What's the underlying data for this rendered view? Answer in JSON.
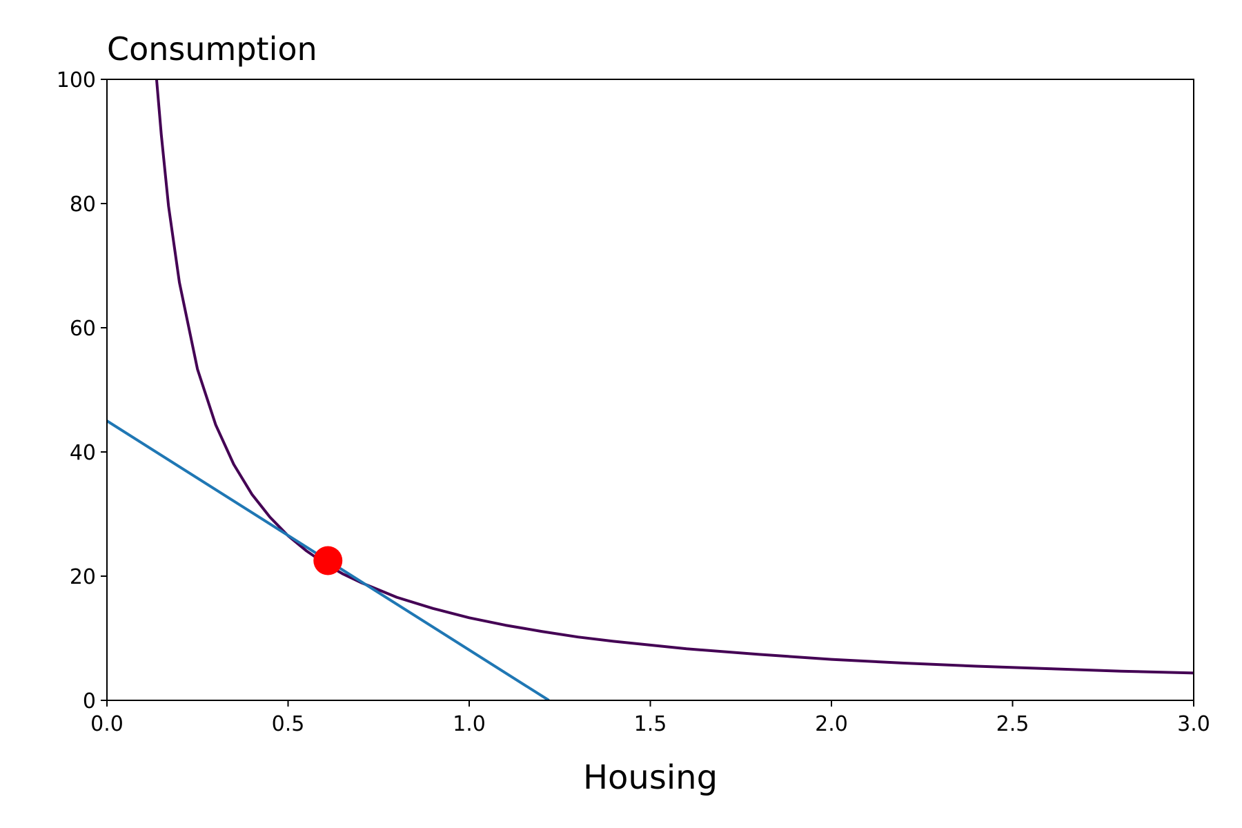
{
  "chart_data": {
    "type": "line",
    "title": "",
    "ylabel": "Consumption",
    "xlabel": "Housing",
    "xlim": [
      0.0,
      3.0
    ],
    "ylim": [
      0,
      100
    ],
    "xticks": [
      "0.0",
      "0.5",
      "1.0",
      "1.5",
      "2.0",
      "2.5",
      "3.0"
    ],
    "xtick_values": [
      0.0,
      0.5,
      1.0,
      1.5,
      2.0,
      2.5,
      3.0
    ],
    "yticks": [
      "0",
      "20",
      "40",
      "60",
      "80",
      "100"
    ],
    "ytick_values": [
      0,
      20,
      40,
      60,
      80,
      100
    ],
    "grid": false,
    "series": [
      {
        "kind": "indifference-curve",
        "color": "#440154",
        "x": [
          0.137,
          0.15,
          0.17,
          0.2,
          0.25,
          0.3,
          0.35,
          0.4,
          0.45,
          0.5,
          0.55,
          0.6,
          0.65,
          0.7,
          0.8,
          0.9,
          1.0,
          1.1,
          1.2,
          1.3,
          1.4,
          1.5,
          1.6,
          1.8,
          2.0,
          2.2,
          2.4,
          2.6,
          2.8,
          3.0
        ],
        "y": [
          100.0,
          91.1,
          79.6,
          67.3,
          53.3,
          44.4,
          38.0,
          33.2,
          29.5,
          26.5,
          24.1,
          22.1,
          20.4,
          19.0,
          16.6,
          14.8,
          13.3,
          12.1,
          11.1,
          10.2,
          9.5,
          8.9,
          8.3,
          7.4,
          6.6,
          6.0,
          5.5,
          5.1,
          4.7,
          4.4
        ]
      },
      {
        "kind": "budget-line",
        "color": "#1f77b4",
        "x": [
          0.0,
          1.22
        ],
        "y": [
          45.0,
          0.0
        ]
      }
    ],
    "points": [
      {
        "kind": "optimum",
        "color": "#ff0000",
        "x": 0.61,
        "y": 22.5
      }
    ]
  }
}
